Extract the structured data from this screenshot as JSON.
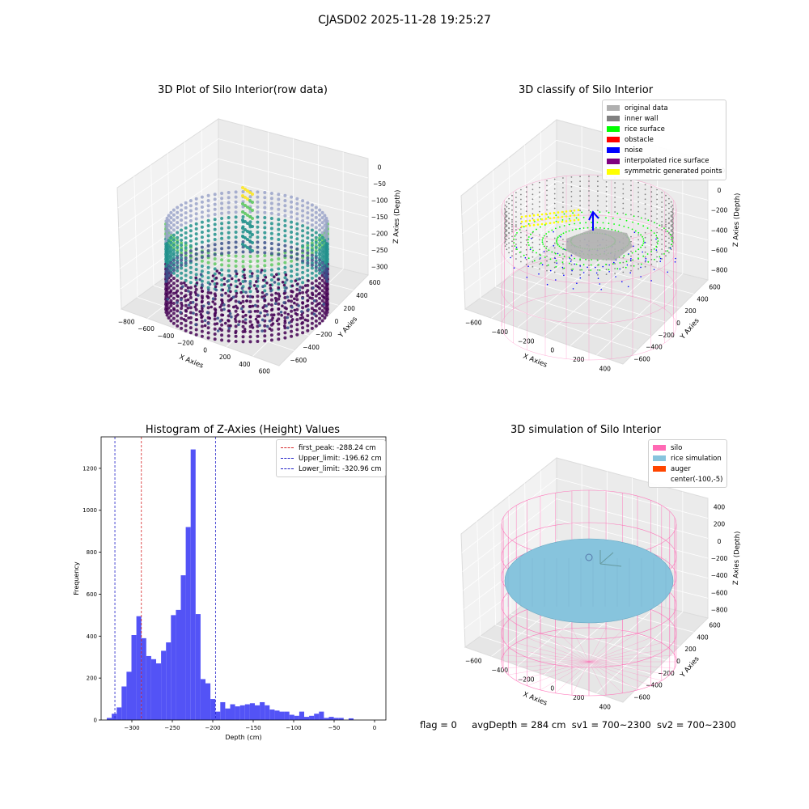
{
  "figure": {
    "suptitle": "CJASD02 2025-11-28 19:25:27",
    "footer": {
      "flag": "flag = 0",
      "avg_depth": "avgDepth = 284 cm",
      "sv1": "sv1 = 700~2300",
      "sv2": "sv2 = 700~2300"
    }
  },
  "colors": {
    "viridis_dark": "#440154",
    "viridis_mid": "#21918c",
    "viridis_green": "#5ec962",
    "viridis_yellow": "#fde725",
    "hist_bar": "#4a4af5",
    "peak_line": "#d62728",
    "limit_line": "#1f1fc8",
    "silo": "#ff69b4",
    "rice": "#87c4dd",
    "auger": "#ff4500",
    "original": "#b0b0b0",
    "inner_wall": "#808080",
    "rice_surface": "#00ff00",
    "obstacle": "#ff0000",
    "noise": "#0000ff",
    "interp": "#800080",
    "sym": "#ffff00"
  },
  "chart_data": [
    {
      "type": "scatter",
      "title": "3D Plot of Silo Interior(row data)",
      "xlabel": "X Axies",
      "ylabel": "Y Axies",
      "zlabel": "Z Axies (Depth)",
      "x_ticks": [
        "−800",
        "−600",
        "−400",
        "−200",
        "0",
        "200",
        "400",
        "600"
      ],
      "y_ticks": [
        "−600",
        "−400",
        "−200",
        "0",
        "200",
        "400",
        "600"
      ],
      "z_ticks": [
        "0",
        "−50",
        "−100",
        "−150",
        "−200",
        "−250",
        "−300"
      ],
      "colormap": "viridis"
    },
    {
      "type": "scatter",
      "title": "3D classify of Silo Interior",
      "xlabel": "X Axies",
      "ylabel": "Y Axies",
      "zlabel": "Z Axies (Depth)",
      "x_ticks": [
        "−600",
        "−400",
        "−200",
        "0",
        "200",
        "400"
      ],
      "y_ticks": [
        "−600",
        "−400",
        "−200",
        "0",
        "200",
        "400",
        "600"
      ],
      "z_ticks": [
        "200",
        "0",
        "−200",
        "−400",
        "−600",
        "−800"
      ],
      "legend": [
        {
          "label": "original data",
          "color": "#b0b0b0"
        },
        {
          "label": "inner wall",
          "color": "#808080"
        },
        {
          "label": "rice surface",
          "color": "#00ff00"
        },
        {
          "label": "obstacle",
          "color": "#ff0000"
        },
        {
          "label": "noise",
          "color": "#0000ff"
        },
        {
          "label": "interpolated rice surface",
          "color": "#800080"
        },
        {
          "label": "symmetric generated points",
          "color": "#ffff00"
        }
      ]
    },
    {
      "type": "bar",
      "title": "Histogram of Z-Axies (Height) Values",
      "xlabel": "Depth (cm)",
      "ylabel": "Frequency",
      "xlim": [
        -338,
        14
      ],
      "ylim": [
        0,
        1350
      ],
      "x_ticks": [
        -300,
        -250,
        -200,
        -150,
        -100,
        -50,
        0
      ],
      "y_ticks": [
        0,
        200,
        400,
        600,
        800,
        1000,
        1200
      ],
      "bin_start": -331,
      "bin_width": 6.1,
      "values": [
        10,
        30,
        60,
        160,
        230,
        405,
        495,
        390,
        305,
        290,
        270,
        330,
        370,
        500,
        525,
        690,
        920,
        1290,
        505,
        195,
        175,
        100,
        40,
        85,
        55,
        75,
        65,
        70,
        75,
        80,
        70,
        85,
        70,
        50,
        45,
        40,
        40,
        25,
        20,
        40,
        15,
        20,
        30,
        40,
        10,
        15,
        10,
        10,
        0,
        8
      ],
      "vlines": [
        {
          "label": "first_peak: -288.24 cm",
          "x": -288.24,
          "color": "#d62728"
        },
        {
          "label": "Upper_limit: -196.62 cm",
          "x": -196.62,
          "color": "#1f1fc8"
        },
        {
          "label": "Lower_limit: -320.96 cm",
          "x": -320.96,
          "color": "#1f1fc8"
        }
      ]
    },
    {
      "type": "scatter",
      "title": "3D simulation of Silo Interior",
      "xlabel": "X Axies",
      "ylabel": "Y Axies",
      "zlabel": "Z Axies (Depth)",
      "x_ticks": [
        "−600",
        "−400",
        "−200",
        "0",
        "200",
        "400"
      ],
      "y_ticks": [
        "−600",
        "−400",
        "−200",
        "0",
        "200",
        "400",
        "600"
      ],
      "z_ticks": [
        "400",
        "200",
        "0",
        "−200",
        "−400",
        "−600",
        "−800"
      ],
      "legend": [
        {
          "label": "silo",
          "color": "#ff69b4",
          "swatch": true
        },
        {
          "label": "rice simulation",
          "color": "#87c4dd",
          "swatch": true
        },
        {
          "label": "auger",
          "color": "#ff4500",
          "swatch": true
        },
        {
          "label": "center(-100,-5)",
          "color": "",
          "swatch": false
        }
      ]
    }
  ]
}
